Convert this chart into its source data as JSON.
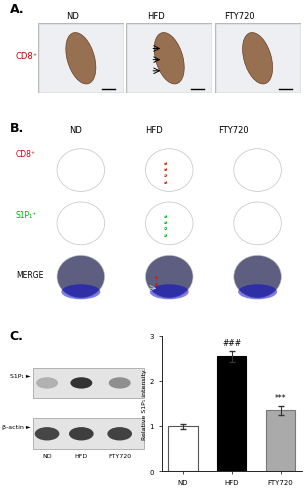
{
  "panel_A_title": "A.",
  "panel_B_title": "B.",
  "panel_C_title": "C.",
  "col_labels": [
    "ND",
    "HFD",
    "FTY720"
  ],
  "row_labels_B": [
    "CD8⁺",
    "S1P₁⁺",
    "MERGE"
  ],
  "row_label_A": "CD8⁺",
  "row_label_A_color": "#cc0000",
  "row_labels_B_colors": [
    "#cc0000",
    "#00aa00",
    "#000000"
  ],
  "bar_categories": [
    "ND",
    "HFD",
    "FTY720"
  ],
  "bar_values": [
    1.0,
    2.55,
    1.35
  ],
  "bar_colors": [
    "#ffffff",
    "#000000",
    "#aaaaaa"
  ],
  "bar_error": [
    0.05,
    0.12,
    0.1
  ],
  "bar_ylabel": "Relative S1P₁ intensity",
  "bar_ylim": [
    0,
    3.0
  ],
  "bar_yticks": [
    0,
    1,
    2,
    3
  ],
  "significance_HFD": "###",
  "significance_FTY720": "***",
  "western_label_S1P1": "S1P₁ ►",
  "western_label_actin": "β-actin ►",
  "background_color": "#ffffff",
  "fig_bg": "#ffffff"
}
